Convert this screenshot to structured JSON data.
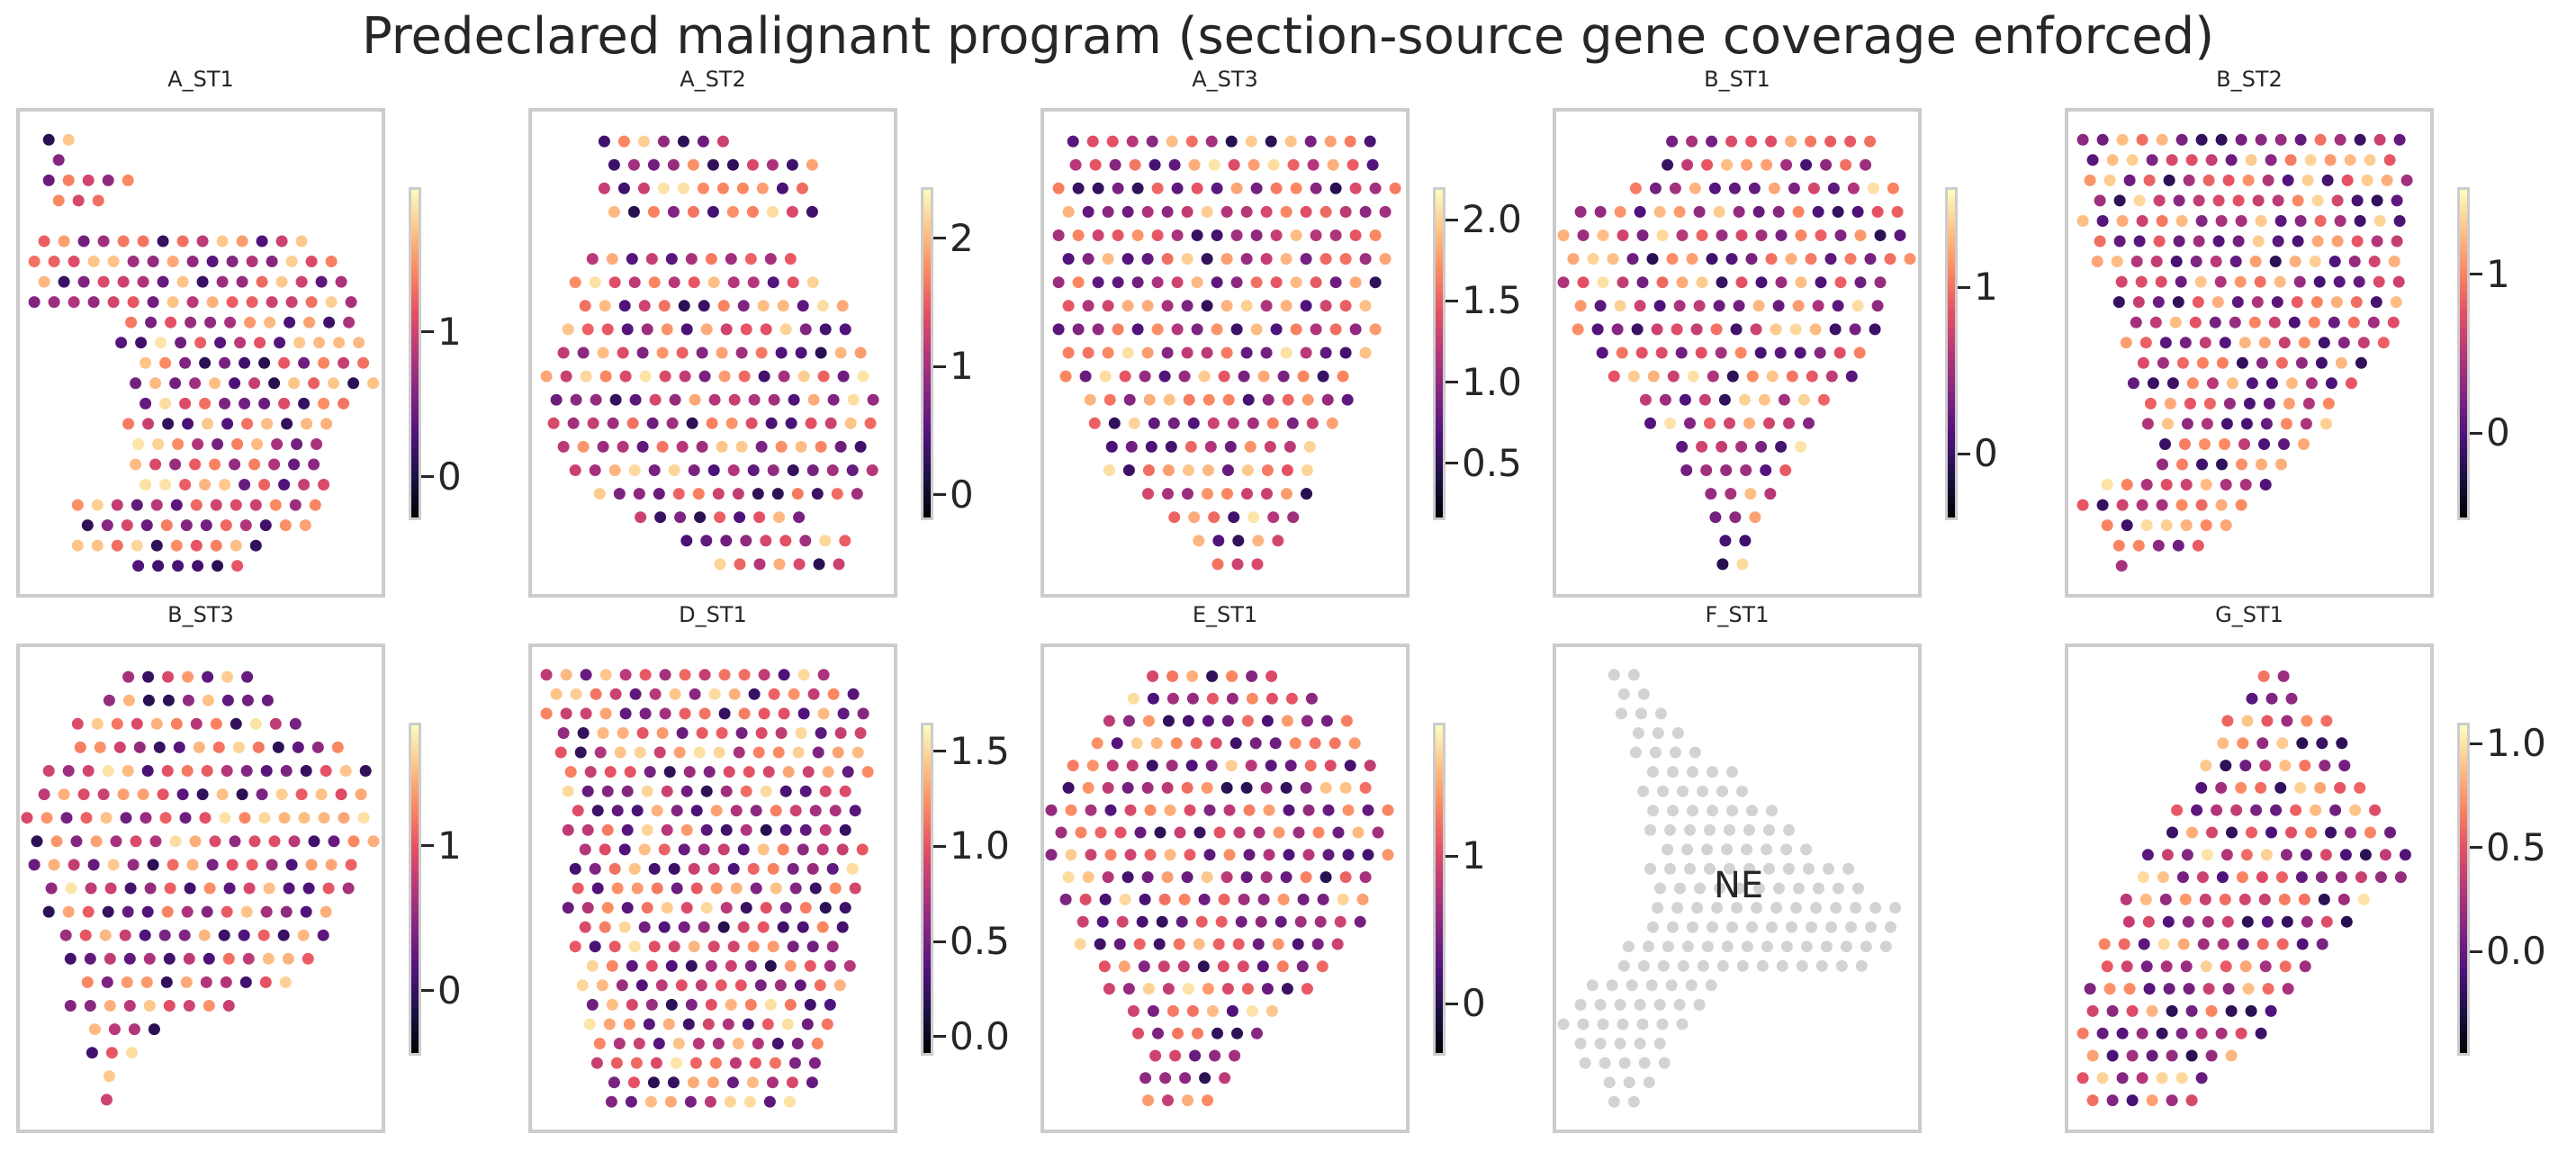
{
  "title": "Predeclared malignant program (section-source gene coverage enforced)",
  "colormap": [
    "#000004",
    "#1c1044",
    "#4f127b",
    "#812581",
    "#b5367a",
    "#e55064",
    "#fb8761",
    "#fec287",
    "#fcfdbf"
  ],
  "na_color": "#d3d3d3",
  "chart_data": [
    {
      "type": "scatter",
      "title": "A_ST1",
      "colorbar": {
        "range": [
          -0.3,
          2.0
        ],
        "ticks": [
          0,
          1
        ],
        "tick_labels": [
          "0",
          "1"
        ]
      }
    },
    {
      "type": "scatter",
      "title": "A_ST2",
      "colorbar": {
        "range": [
          -0.2,
          2.4
        ],
        "ticks": [
          0,
          1,
          2
        ],
        "tick_labels": [
          "0",
          "1",
          "2"
        ]
      }
    },
    {
      "type": "scatter",
      "title": "A_ST3",
      "colorbar": {
        "range": [
          0.15,
          2.2
        ],
        "ticks": [
          0.5,
          1.0,
          1.5,
          2.0
        ],
        "tick_labels": [
          "0.5",
          "1.0",
          "1.5",
          "2.0"
        ]
      }
    },
    {
      "type": "scatter",
      "title": "B_ST1",
      "colorbar": {
        "range": [
          -0.4,
          1.6
        ],
        "ticks": [
          0,
          1
        ],
        "tick_labels": [
          "0",
          "1"
        ]
      }
    },
    {
      "type": "scatter",
      "title": "B_ST2",
      "colorbar": {
        "range": [
          -0.55,
          1.55
        ],
        "ticks": [
          0,
          1
        ],
        "tick_labels": [
          "0",
          "1"
        ]
      }
    },
    {
      "type": "scatter",
      "title": "B_ST3",
      "colorbar": {
        "range": [
          -0.45,
          1.85
        ],
        "ticks": [
          0,
          1
        ],
        "tick_labels": [
          "0",
          "1"
        ]
      }
    },
    {
      "type": "scatter",
      "title": "D_ST1",
      "colorbar": {
        "range": [
          -0.1,
          1.65
        ],
        "ticks": [
          0.0,
          0.5,
          1.0,
          1.5
        ],
        "tick_labels": [
          "0.0",
          "0.5",
          "1.0",
          "1.5"
        ]
      }
    },
    {
      "type": "scatter",
      "title": "E_ST1",
      "colorbar": {
        "range": [
          -0.35,
          1.9
        ],
        "ticks": [
          0,
          1
        ],
        "tick_labels": [
          "0",
          "1"
        ]
      }
    },
    {
      "type": "scatter",
      "title": "F_ST1",
      "annotation": "NE",
      "no_colorbar": true
    },
    {
      "type": "scatter",
      "title": "G_ST1",
      "colorbar": {
        "range": [
          -0.5,
          1.1
        ],
        "ticks": [
          0.0,
          0.5,
          1.0
        ],
        "tick_labels": [
          "0.0",
          "0.5",
          "1.0"
        ]
      }
    }
  ]
}
